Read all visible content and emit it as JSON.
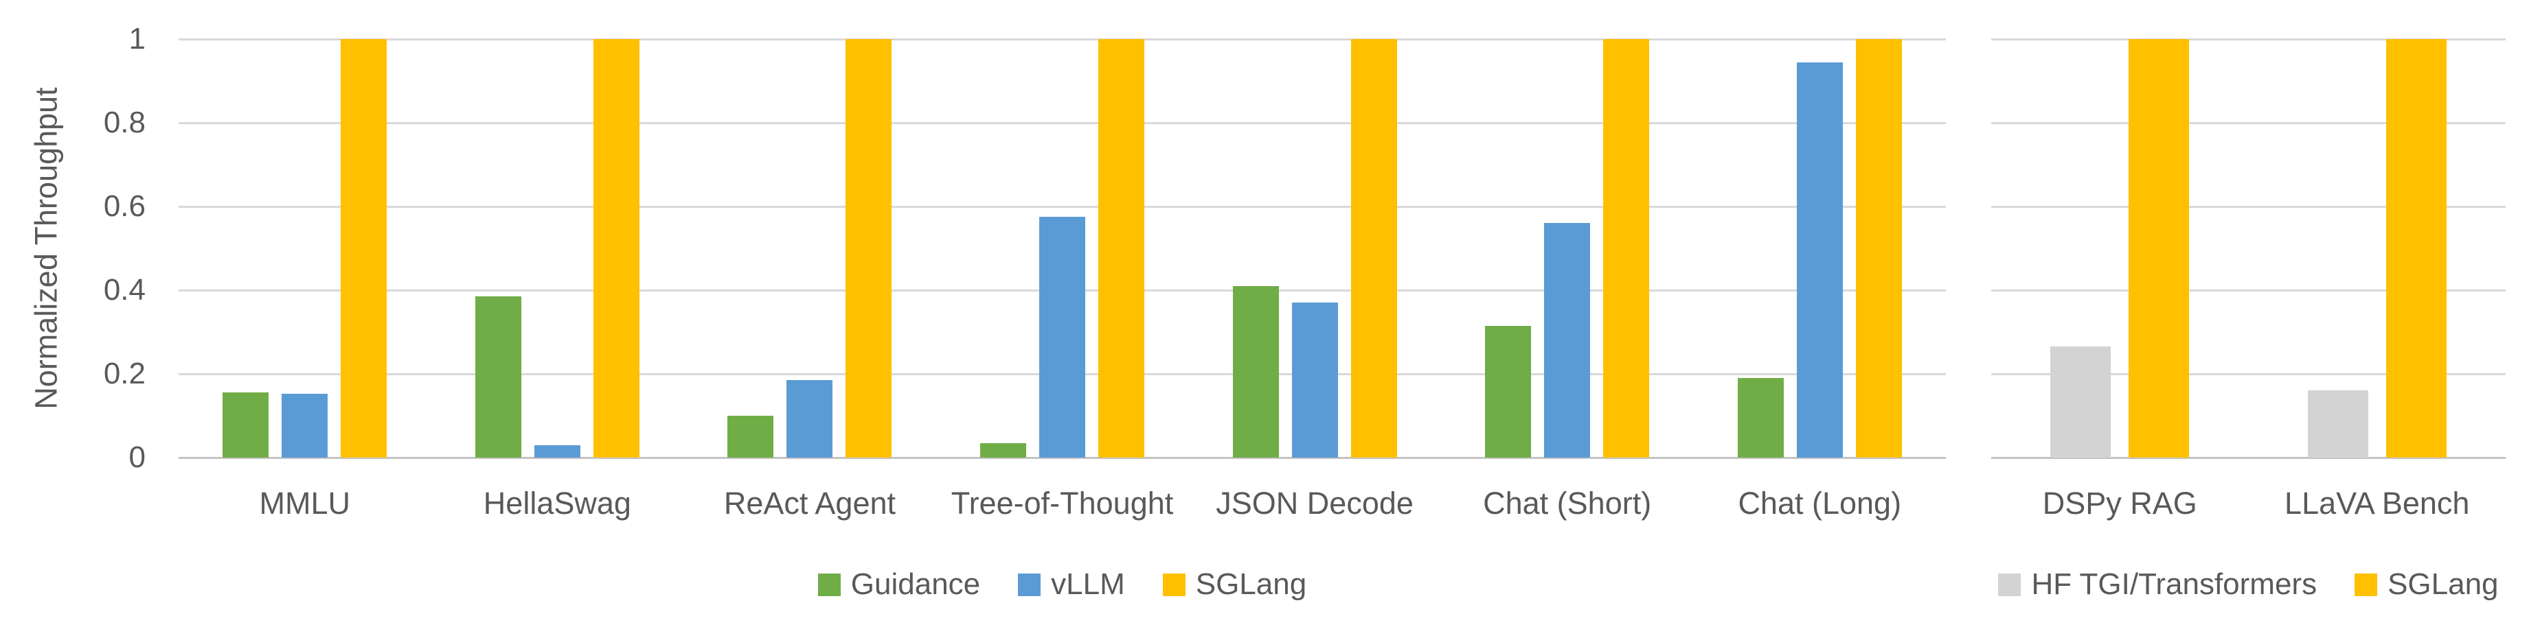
{
  "colors": {
    "text": "#595959",
    "gridline": "#D9D9D9",
    "axis_line": "#C3C3C3",
    "background": "#FFFFFF",
    "guidance_green": "#70AD47",
    "vllm_blue": "#5B9BD5",
    "sglang_gold": "#FFC000",
    "hf_gray": "#D3D3D3"
  },
  "chart_data": [
    {
      "type": "bar",
      "title": "",
      "xlabel": "",
      "ylabel": "Normalized Throughput",
      "ylim": [
        0,
        1
      ],
      "yticks": [
        1,
        0.8,
        0.6,
        0.4,
        0.2,
        0
      ],
      "grid": true,
      "legend_position": "bottom",
      "categories": [
        "MMLU",
        "HellaSwag",
        "ReAct Agent",
        "Tree-of-Thought",
        "JSON Decode",
        "Chat (Short)",
        "Chat (Long)"
      ],
      "series": [
        {
          "name": "Guidance",
          "color": "#70AD47",
          "values": [
            0.155,
            0.385,
            0.1,
            0.035,
            0.41,
            0.315,
            0.19
          ]
        },
        {
          "name": "vLLM",
          "color": "#5B9BD5",
          "values": [
            0.153,
            0.03,
            0.185,
            0.575,
            0.37,
            0.56,
            0.945
          ]
        },
        {
          "name": "SGLang",
          "color": "#FFC000",
          "values": [
            1,
            1,
            1,
            1,
            1,
            1,
            1
          ]
        }
      ]
    },
    {
      "type": "bar",
      "title": "",
      "xlabel": "",
      "ylabel": "",
      "ylim": [
        0,
        1
      ],
      "yticks": [
        1,
        0.8,
        0.6,
        0.4,
        0.2,
        0
      ],
      "grid": true,
      "legend_position": "bottom",
      "categories": [
        "DSPy RAG",
        "LLaVA Bench"
      ],
      "series": [
        {
          "name": "HF TGI/Transformers",
          "color": "#D3D3D3",
          "values": [
            0.265,
            0.16
          ]
        },
        {
          "name": "SGLang",
          "color": "#FFC000",
          "values": [
            1,
            1
          ]
        }
      ]
    }
  ]
}
